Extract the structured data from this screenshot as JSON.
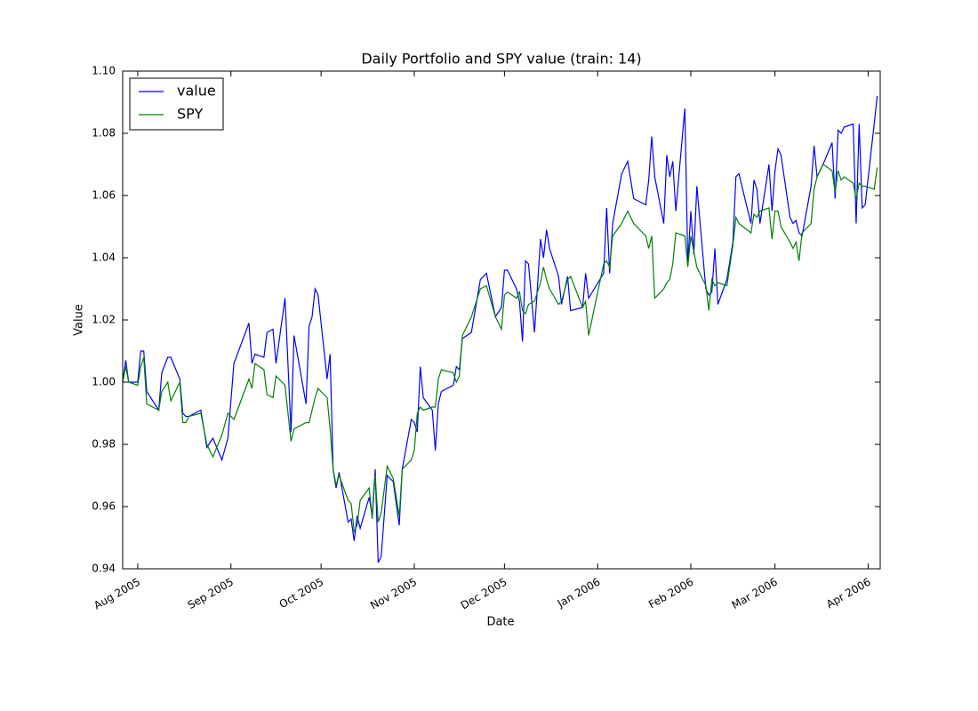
{
  "chart_data": {
    "type": "line",
    "title": "Daily Portfolio and SPY value (train: 14)",
    "x_label": "Date",
    "y_label": "Value",
    "x": [
      -5,
      -4,
      -3,
      0,
      1,
      2,
      3,
      7,
      8,
      10,
      11,
      14,
      15,
      16,
      17,
      21,
      23,
      25,
      28,
      30,
      32,
      37,
      38,
      39,
      42,
      43,
      45,
      46,
      49,
      51,
      52,
      56,
      57,
      58,
      59,
      60,
      63,
      64,
      65,
      66,
      67,
      70,
      71,
      72,
      73,
      74,
      77,
      78,
      79,
      80,
      81,
      83,
      85,
      87,
      88,
      91,
      92,
      93,
      94,
      95,
      98,
      99,
      100,
      101,
      105,
      106,
      107,
      108,
      111,
      114,
      116,
      119,
      121,
      122,
      123,
      126,
      127,
      128,
      129,
      130,
      132,
      134,
      135,
      136,
      137,
      140,
      141,
      143,
      144,
      148,
      149,
      150,
      155,
      156,
      157,
      158,
      161,
      163,
      165,
      169,
      170,
      171,
      172,
      175,
      176,
      177,
      178,
      179,
      182,
      183,
      184,
      185,
      186,
      189,
      190,
      191,
      192,
      193,
      196,
      198,
      199,
      200,
      204,
      205,
      206,
      207,
      210,
      211,
      212,
      213,
      214,
      217,
      218,
      219,
      220,
      221,
      224,
      225,
      226,
      227,
      228,
      231,
      232,
      233,
      234,
      235,
      238,
      239,
      240,
      241,
      242,
      245,
      246
    ],
    "series": [
      {
        "name": "value",
        "color": "#0000ff",
        "values": [
          1.0,
          1.007,
          1.0,
          1.0,
          1.01,
          1.01,
          0.997,
          0.991,
          1.003,
          1.008,
          1.008,
          1.001,
          0.99,
          0.989,
          0.989,
          0.991,
          0.979,
          0.982,
          0.975,
          0.982,
          1.006,
          1.019,
          1.006,
          1.009,
          1.008,
          1.016,
          1.017,
          1.006,
          1.027,
          0.984,
          1.015,
          0.993,
          1.018,
          1.021,
          1.03,
          1.028,
          1.001,
          1.009,
          0.972,
          0.966,
          0.971,
          0.955,
          0.956,
          0.949,
          0.957,
          0.953,
          0.963,
          0.957,
          0.972,
          0.942,
          0.944,
          0.97,
          0.968,
          0.954,
          0.972,
          0.988,
          0.987,
          0.984,
          1.005,
          0.995,
          0.991,
          0.978,
          0.993,
          0.997,
          0.999,
          1.005,
          1.004,
          1.014,
          1.016,
          1.033,
          1.035,
          1.021,
          1.024,
          1.036,
          1.036,
          1.03,
          1.026,
          1.013,
          1.039,
          1.038,
          1.016,
          1.046,
          1.04,
          1.049,
          1.043,
          1.034,
          1.025,
          1.034,
          1.023,
          1.024,
          1.035,
          1.027,
          1.035,
          1.056,
          1.035,
          1.051,
          1.067,
          1.071,
          1.059,
          1.057,
          1.065,
          1.079,
          1.066,
          1.051,
          1.073,
          1.066,
          1.071,
          1.055,
          1.088,
          1.038,
          1.055,
          1.041,
          1.063,
          1.03,
          1.028,
          1.029,
          1.043,
          1.025,
          1.033,
          1.045,
          1.066,
          1.067,
          1.051,
          1.065,
          1.062,
          1.051,
          1.07,
          1.055,
          1.068,
          1.075,
          1.073,
          1.053,
          1.051,
          1.052,
          1.048,
          1.047,
          1.063,
          1.076,
          1.066,
          1.068,
          1.07,
          1.077,
          1.059,
          1.081,
          1.08,
          1.082,
          1.083,
          1.051,
          1.083,
          1.056,
          1.057,
          1.083,
          1.092
        ]
      },
      {
        "name": "SPY",
        "color": "#008000",
        "values": [
          1.0,
          1.005,
          1.0,
          0.999,
          1.005,
          1.008,
          0.993,
          0.991,
          0.997,
          1.0,
          0.994,
          1.0,
          0.987,
          0.987,
          0.989,
          0.99,
          0.98,
          0.976,
          0.983,
          0.99,
          0.988,
          1.001,
          0.998,
          1.006,
          1.004,
          0.996,
          0.995,
          1.002,
          0.999,
          0.981,
          0.985,
          0.987,
          0.987,
          0.991,
          0.995,
          0.998,
          0.995,
          0.985,
          0.972,
          0.967,
          0.97,
          0.962,
          0.961,
          0.952,
          0.954,
          0.962,
          0.966,
          0.956,
          0.97,
          0.955,
          0.958,
          0.973,
          0.969,
          0.957,
          0.972,
          0.975,
          0.978,
          0.99,
          0.992,
          0.991,
          0.992,
          0.992,
          1.001,
          1.004,
          1.003,
          1.0,
          1.002,
          1.015,
          1.021,
          1.03,
          1.031,
          1.021,
          1.017,
          1.028,
          1.029,
          1.027,
          1.029,
          1.023,
          1.022,
          1.025,
          1.026,
          1.032,
          1.037,
          1.033,
          1.03,
          1.025,
          1.026,
          1.033,
          1.034,
          1.024,
          1.026,
          1.015,
          1.038,
          1.039,
          1.037,
          1.047,
          1.051,
          1.055,
          1.051,
          1.047,
          1.043,
          1.047,
          1.027,
          1.03,
          1.032,
          1.033,
          1.038,
          1.048,
          1.047,
          1.037,
          1.047,
          1.042,
          1.037,
          1.031,
          1.023,
          1.033,
          1.031,
          1.032,
          1.031,
          1.044,
          1.053,
          1.051,
          1.048,
          1.054,
          1.053,
          1.055,
          1.056,
          1.046,
          1.055,
          1.055,
          1.05,
          1.045,
          1.043,
          1.045,
          1.039,
          1.048,
          1.051,
          1.062,
          1.066,
          1.068,
          1.07,
          1.068,
          1.061,
          1.068,
          1.065,
          1.066,
          1.064,
          1.059,
          1.064,
          1.063,
          1.063,
          1.062,
          1.069
        ]
      }
    ],
    "xlim": [
      -5,
      247
    ],
    "xticks": [
      {
        "value": 0,
        "label": "Aug 2005"
      },
      {
        "value": 31,
        "label": "Sep 2005"
      },
      {
        "value": 61,
        "label": "Oct 2005"
      },
      {
        "value": 92,
        "label": "Nov 2005"
      },
      {
        "value": 122,
        "label": "Dec 2005"
      },
      {
        "value": 153,
        "label": "Jan 2006"
      },
      {
        "value": 184,
        "label": "Feb 2006"
      },
      {
        "value": 212,
        "label": "Mar 2006"
      },
      {
        "value": 243,
        "label": "Apr 2006"
      }
    ],
    "ylim": [
      0.94,
      1.1
    ],
    "yticks": [
      0.94,
      0.96,
      0.98,
      {
        "value": 1.0,
        "label": "1.00"
      },
      1.02,
      1.04,
      1.06,
      1.08,
      {
        "value": 1.1,
        "label": "1.10"
      }
    ],
    "legend": "upper left",
    "grid": false
  }
}
